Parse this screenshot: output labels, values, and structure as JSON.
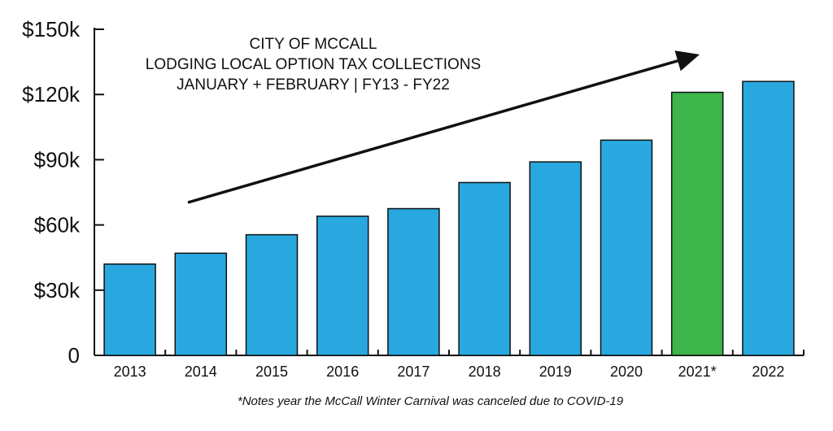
{
  "chart_data": {
    "type": "bar",
    "title": [
      "CITY OF MCCALL",
      "LODGING LOCAL OPTION TAX COLLECTIONS",
      "JANUARY + FEBRUARY | FY13 - FY22"
    ],
    "categories": [
      "2013",
      "2014",
      "2015",
      "2016",
      "2017",
      "2018",
      "2019",
      "2020",
      "2021*",
      "2022"
    ],
    "values": [
      42000,
      47000,
      55500,
      64000,
      67500,
      79500,
      89000,
      99000,
      121000,
      126000
    ],
    "ylim": [
      0,
      150000
    ],
    "yticks": [
      0,
      30000,
      60000,
      90000,
      120000,
      150000
    ],
    "ytick_labels": [
      "0",
      "$30k",
      "$60k",
      "$90k",
      "$120k",
      "$150k"
    ],
    "xlabel": "",
    "ylabel": "",
    "grid": false,
    "legend": "none",
    "trend_arrow": true,
    "footnote": "*Notes year the McCall Winter Carnival was canceled due to COVID-19",
    "colors": {
      "bar": "#29A8E0",
      "highlight": "#3DB54A",
      "outline": "#111111"
    },
    "highlight_index": 8
  }
}
